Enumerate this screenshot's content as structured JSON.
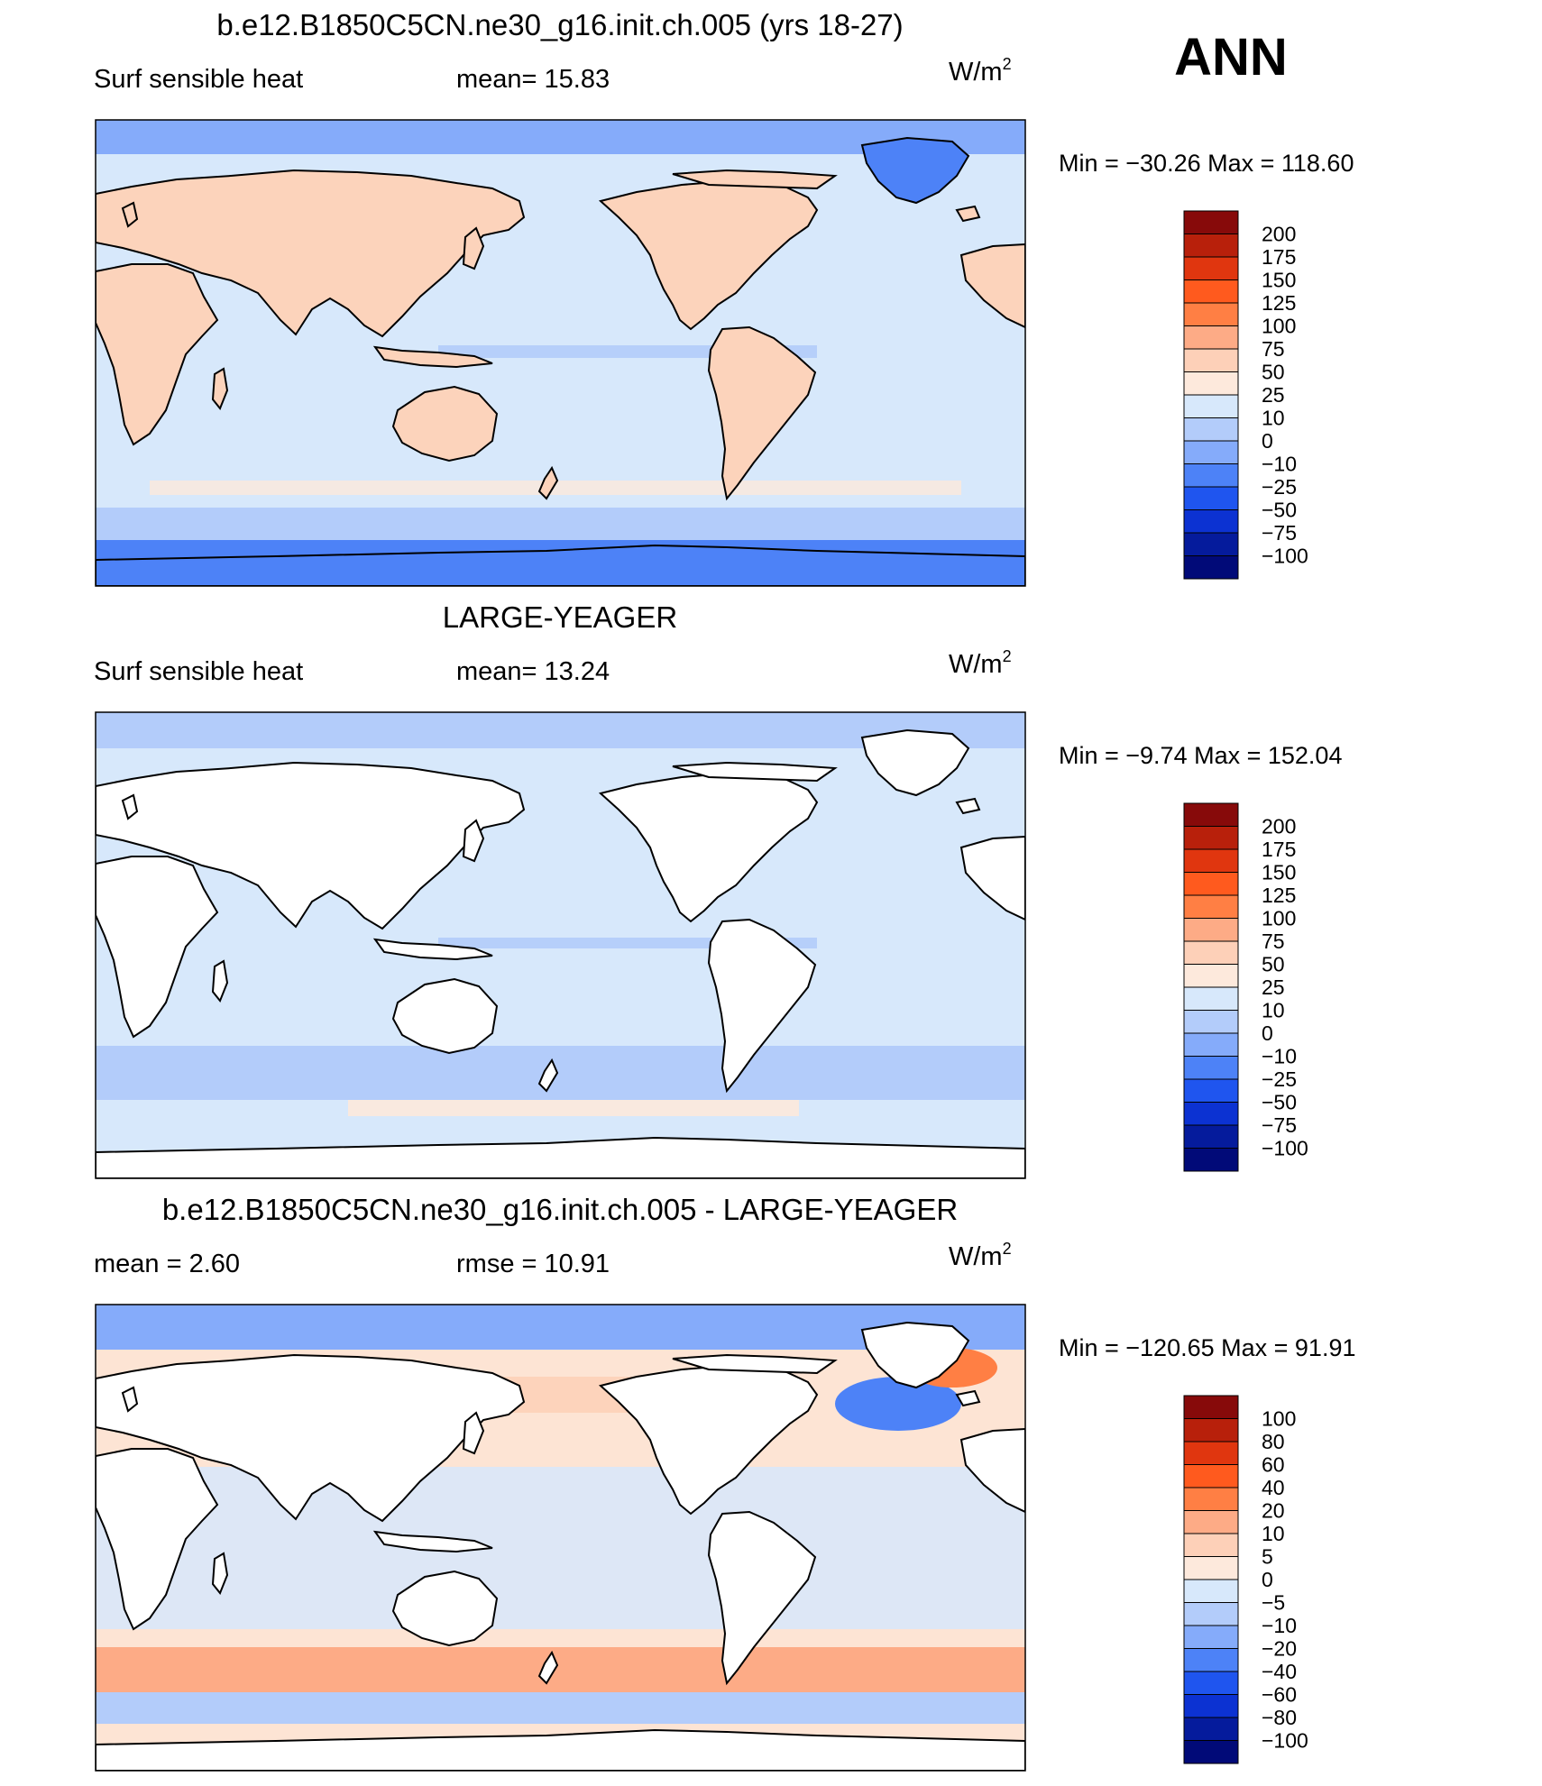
{
  "season": "ANN",
  "units_label": "W/m",
  "units_exp": "2",
  "panels": [
    {
      "title": "b.e12.B1850C5CN.ne30_g16.init.ch.005 (yrs 18-27)",
      "left_label": "Surf  sensible  heat",
      "mid_label": "mean=   15.83",
      "minmax": "Min  =  −30.26  Max  =  118.60",
      "ocean_color": "#d7e8fb",
      "land_color": "#fcd3bb",
      "ocean_only": false,
      "colorbar": [
        "200",
        "175",
        "150",
        "125",
        "100",
        "75",
        "50",
        "25",
        "10",
        "0",
        "−10",
        "−25",
        "−50",
        "−75",
        "−100"
      ]
    },
    {
      "title": "LARGE-YEAGER",
      "left_label": "Surf  sensible  heat",
      "mid_label": "mean=   13.24",
      "minmax": "Min  =   −9.74  Max  =  152.04",
      "ocean_color": "#d7e8fb",
      "land_color": "#ffffff",
      "ocean_only": true,
      "colorbar": [
        "200",
        "175",
        "150",
        "125",
        "100",
        "75",
        "50",
        "25",
        "10",
        "0",
        "−10",
        "−25",
        "−50",
        "−75",
        "−100"
      ]
    },
    {
      "title": "b.e12.B1850C5CN.ne30_g16.init.ch.005 - LARGE-YEAGER",
      "left_label": "mean  =     2.60",
      "mid_label": "rmse  =    10.91",
      "minmax": "Min  =  −120.65  Max  =    91.91",
      "ocean_color": "#fde4d4",
      "land_color": "#ffffff",
      "ocean_only": true,
      "colorbar": [
        "100",
        "80",
        "60",
        "40",
        "20",
        "10",
        "5",
        "0",
        "−5",
        "−10",
        "−20",
        "−40",
        "−60",
        "−80",
        "−100"
      ]
    }
  ],
  "colors": {
    "scale": [
      "#870a0a",
      "#b8200b",
      "#e0360f",
      "#ff5a1e",
      "#ff7f44",
      "#fdab86",
      "#fdd0b8",
      "#fde9dc",
      "#d7e8fb",
      "#b3ccfa",
      "#85abfa",
      "#4d82f7",
      "#1f55ef",
      "#0c32d2",
      "#051b9c",
      "#010a78"
    ]
  }
}
